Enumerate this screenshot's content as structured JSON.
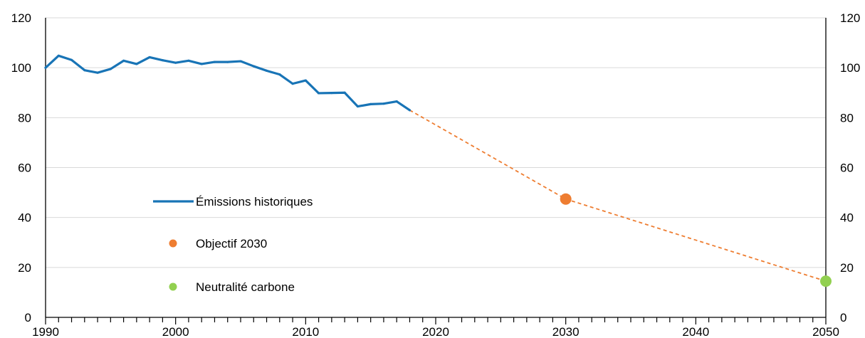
{
  "chart_data": {
    "type": "line",
    "title": "",
    "xlabel": "",
    "ylabel": "",
    "xlim": [
      1990,
      2050
    ],
    "ylim": [
      0,
      120
    ],
    "y_ticks": [
      0,
      20,
      40,
      60,
      80,
      100,
      120
    ],
    "y_tick_labels": [
      "0",
      "20",
      "40",
      "60",
      "80",
      "100",
      "120"
    ],
    "x_ticks": [
      1990,
      2000,
      2010,
      2020,
      2030,
      2040,
      2050
    ],
    "x_tick_labels": [
      "1990",
      "2000",
      "2010",
      "2020",
      "2030",
      "2040",
      "2050"
    ],
    "grid": true,
    "secondary_y_axis": true,
    "legend_position": "center-left",
    "series": [
      {
        "name": "Émissions historiques",
        "type": "line",
        "color": "#1874b6",
        "x": [
          1990,
          1991,
          1992,
          1993,
          1994,
          1995,
          1996,
          1997,
          1998,
          1999,
          2000,
          2001,
          2002,
          2003,
          2004,
          2005,
          2006,
          2007,
          2008,
          2009,
          2010,
          2011,
          2012,
          2013,
          2014,
          2015,
          2016,
          2017,
          2018
        ],
        "values": [
          100,
          104.8,
          103.1,
          99,
          98,
          99.5,
          102.8,
          101.5,
          104.2,
          103,
          102,
          102.8,
          101.5,
          102.3,
          102.3,
          102.6,
          100.6,
          98.8,
          97.3,
          93.6,
          94.9,
          89.8,
          89.9,
          90,
          84.5,
          85.4,
          85.6,
          86.5,
          83
        ]
      },
      {
        "name": "Objectif 2030",
        "type": "scatter",
        "color": "#ee7d31",
        "x": [
          2030
        ],
        "values": [
          47.4
        ]
      },
      {
        "name": "Neutralité carbone",
        "type": "scatter",
        "color": "#92d050",
        "x": [
          2050
        ],
        "values": [
          14.5
        ]
      }
    ],
    "trajectory": {
      "color": "#ee7d31",
      "style": "dashed",
      "x": [
        2018,
        2030,
        2050
      ],
      "values": [
        83,
        47.4,
        14.5
      ]
    }
  }
}
